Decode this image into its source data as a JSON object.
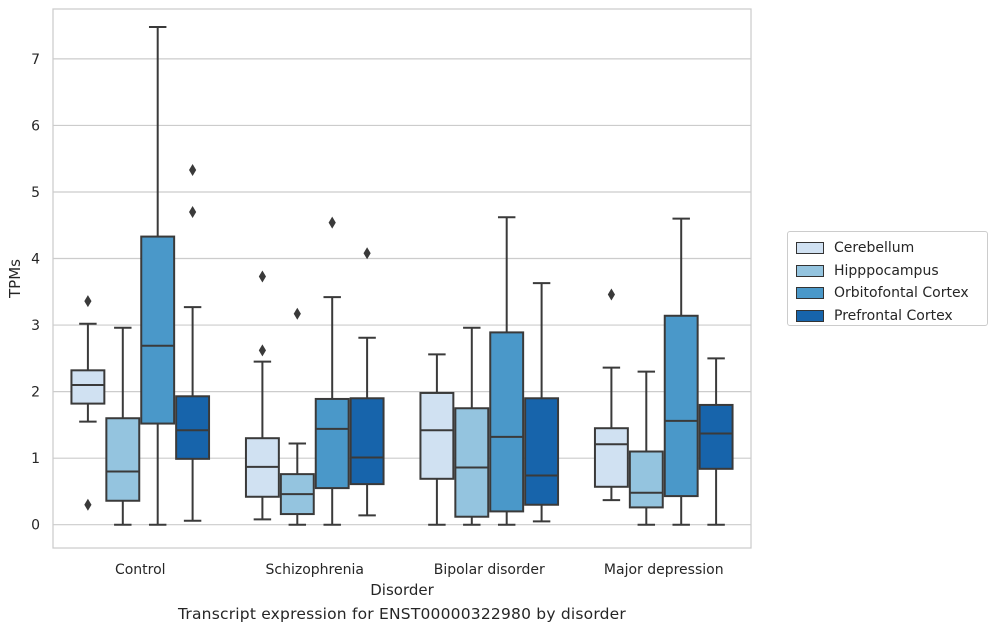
{
  "chart_data": {
    "type": "boxplot",
    "title": "Transcript expression for ENST00000322980 by disorder",
    "xlabel": "Disorder",
    "ylabel": "TPMs",
    "ylim": [
      -0.35,
      7.75
    ],
    "yticks": [
      0,
      1,
      2,
      3,
      4,
      5,
      6,
      7
    ],
    "grid": true,
    "legend_position": "right",
    "categories": [
      "Control",
      "Schizophrenia",
      "Bipolar disorder",
      "Major depression"
    ],
    "series": [
      {
        "name": "Cerebellum",
        "color": "#d0e1f2",
        "boxes": [
          {
            "whislo": 1.55,
            "q1": 1.82,
            "med": 2.1,
            "q3": 2.32,
            "whishi": 3.02,
            "fliers": [
              3.36,
              0.3
            ]
          },
          {
            "whislo": 0.08,
            "q1": 0.42,
            "med": 0.87,
            "q3": 1.3,
            "whishi": 2.45,
            "fliers": [
              2.62,
              3.73
            ]
          },
          {
            "whislo": 0.0,
            "q1": 0.69,
            "med": 1.42,
            "q3": 1.98,
            "whishi": 2.56,
            "fliers": []
          },
          {
            "whislo": 0.37,
            "q1": 0.57,
            "med": 1.21,
            "q3": 1.45,
            "whishi": 2.36,
            "fliers": [
              3.46
            ]
          }
        ]
      },
      {
        "name": "Hipppocampus",
        "color": "#94c4df",
        "boxes": [
          {
            "whislo": 0.0,
            "q1": 0.36,
            "med": 0.8,
            "q3": 1.6,
            "whishi": 2.96,
            "fliers": []
          },
          {
            "whislo": 0.0,
            "q1": 0.16,
            "med": 0.46,
            "q3": 0.76,
            "whishi": 1.22,
            "fliers": [
              3.17
            ]
          },
          {
            "whislo": 0.0,
            "q1": 0.12,
            "med": 0.86,
            "q3": 1.75,
            "whishi": 2.96,
            "fliers": []
          },
          {
            "whislo": 0.0,
            "q1": 0.26,
            "med": 0.48,
            "q3": 1.1,
            "whishi": 2.3,
            "fliers": []
          }
        ]
      },
      {
        "name": "Orbitofontal Cortex",
        "color": "#4a98c9",
        "boxes": [
          {
            "whislo": 0.0,
            "q1": 1.52,
            "med": 2.69,
            "q3": 4.33,
            "whishi": 7.48,
            "fliers": []
          },
          {
            "whislo": 0.0,
            "q1": 0.55,
            "med": 1.44,
            "q3": 1.89,
            "whishi": 3.42,
            "fliers": [
              4.54
            ]
          },
          {
            "whislo": 0.0,
            "q1": 0.2,
            "med": 1.32,
            "q3": 2.89,
            "whishi": 4.62,
            "fliers": []
          },
          {
            "whislo": 0.0,
            "q1": 0.43,
            "med": 1.56,
            "q3": 3.14,
            "whishi": 4.6,
            "fliers": []
          }
        ]
      },
      {
        "name": "Prefrontal Cortex",
        "color": "#1764ab",
        "boxes": [
          {
            "whislo": 0.06,
            "q1": 0.99,
            "med": 1.42,
            "q3": 1.93,
            "whishi": 3.27,
            "fliers": [
              4.7,
              5.33
            ]
          },
          {
            "whislo": 0.14,
            "q1": 0.61,
            "med": 1.01,
            "q3": 1.9,
            "whishi": 2.81,
            "fliers": [
              4.08
            ]
          },
          {
            "whislo": 0.05,
            "q1": 0.3,
            "med": 0.74,
            "q3": 1.9,
            "whishi": 3.63,
            "fliers": []
          },
          {
            "whislo": 0.0,
            "q1": 0.84,
            "med": 1.37,
            "q3": 1.8,
            "whishi": 2.5,
            "fliers": []
          }
        ]
      }
    ]
  }
}
